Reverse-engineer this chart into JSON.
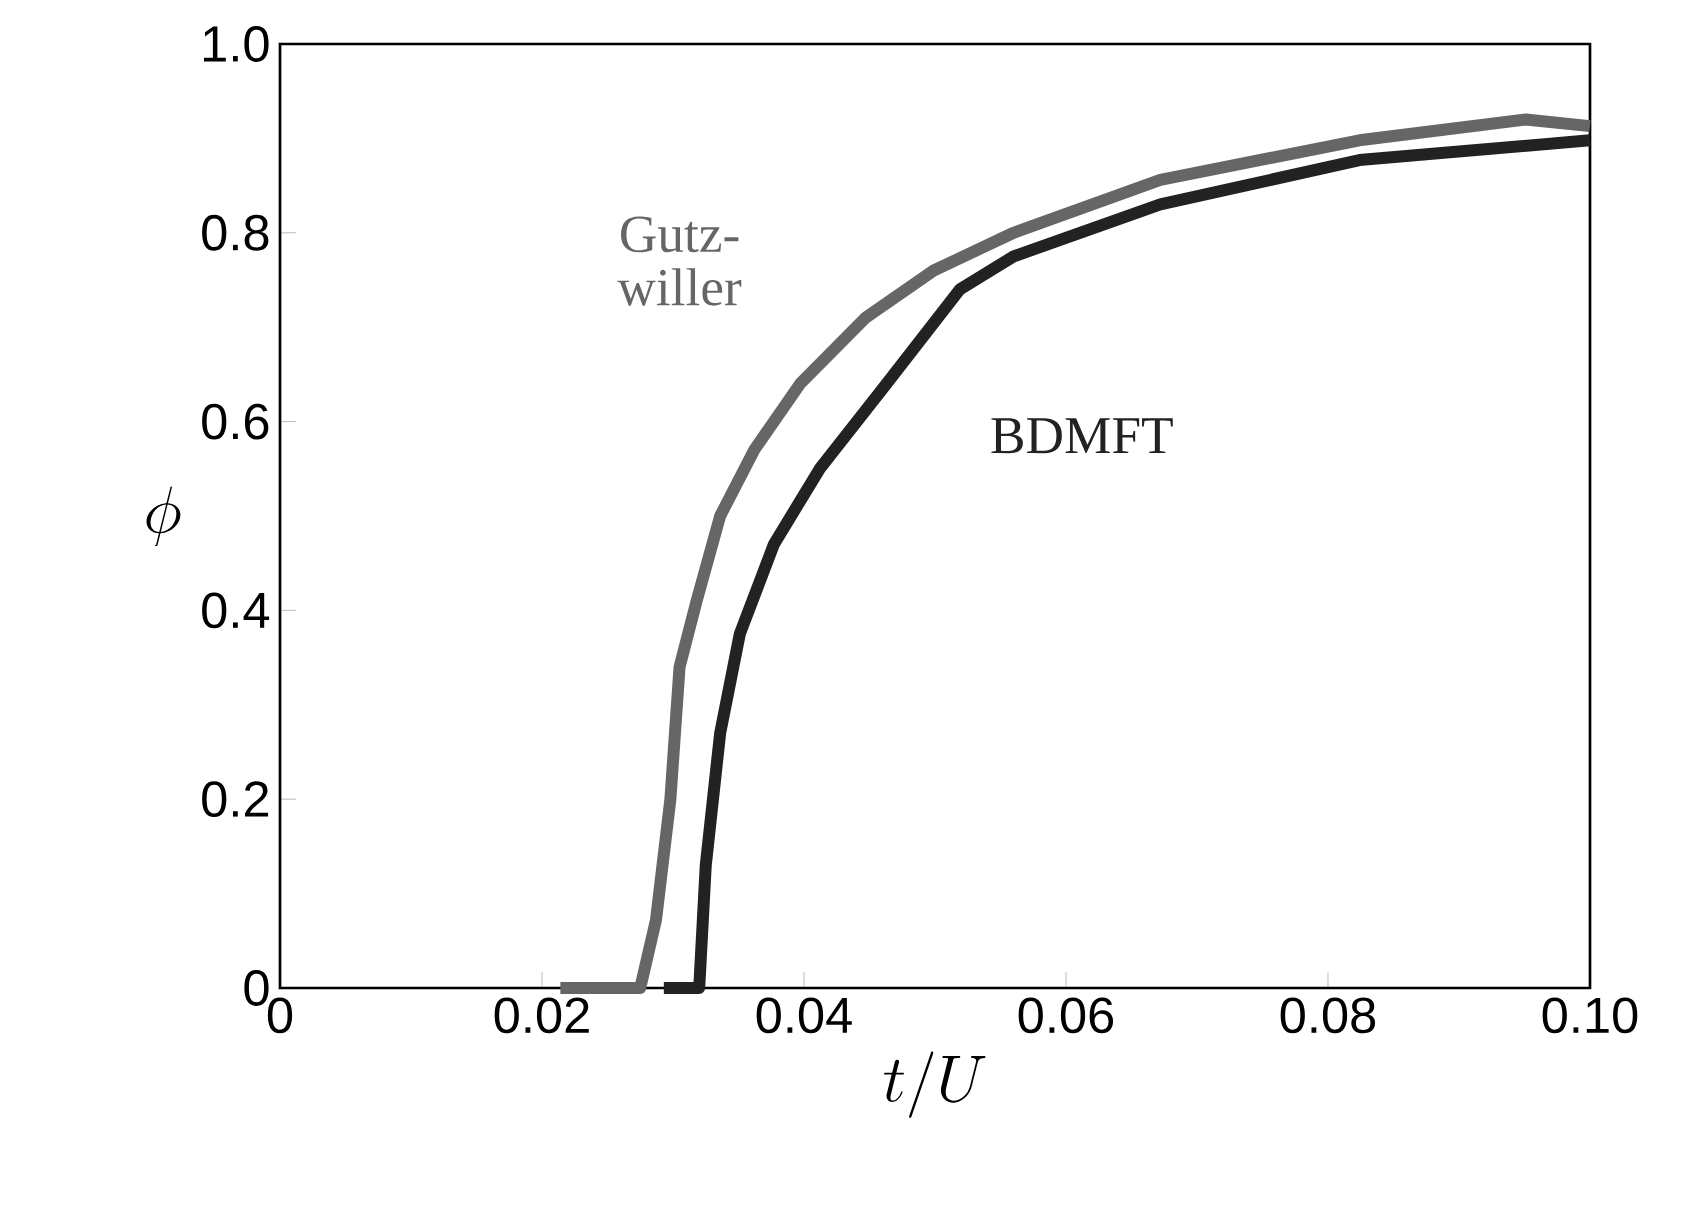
{
  "chart_data": {
    "type": "line",
    "xlabel": "t/U",
    "ylabel": "\\phi",
    "xlim": [
      0,
      0.1
    ],
    "ylim": [
      0,
      1
    ],
    "xticks": [
      0,
      0.02,
      0.04,
      0.06,
      0.08,
      {
        "value": 0.1,
        "label": "0.10"
      }
    ],
    "yticks": [
      0,
      0.2,
      0.4,
      0.6,
      0.8,
      {
        "value": 1.0,
        "label": "1.0"
      }
    ],
    "grid": false,
    "marker": "none",
    "line_style": "solid",
    "series": [
      {
        "name": "Gutz-willer",
        "color": "#666666",
        "x": [
          0.0214,
          0.0275,
          0.0287,
          0.0298,
          0.0305,
          0.0318,
          0.0336,
          0.0362,
          0.0397,
          0.0447,
          0.0499,
          0.056,
          0.0672,
          0.0824,
          0.0951,
          0.1
        ],
        "values": [
          0,
          0,
          0.072,
          0.2,
          0.34,
          0.41,
          0.5,
          0.57,
          0.64,
          0.71,
          0.76,
          0.8,
          0.856,
          0.898,
          0.92,
          0.913
        ]
      },
      {
        "name": "BDMFT",
        "color": "#222222",
        "x": [
          0.0293,
          0.032,
          0.0325,
          0.0336,
          0.0351,
          0.0377,
          0.0412,
          0.0463,
          0.0519,
          0.056,
          0.0672,
          0.0824,
          0.1
        ],
        "values": [
          0,
          0,
          0.13,
          0.27,
          0.375,
          0.47,
          0.55,
          0.64,
          0.74,
          0.775,
          0.83,
          0.877,
          0.898
        ]
      }
    ]
  }
}
